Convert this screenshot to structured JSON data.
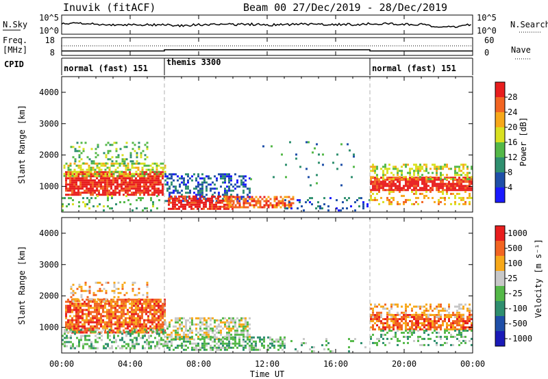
{
  "header": {
    "radar_title": "Inuvik (fitACF)",
    "beam_title": "Beam 00  27/Dec/2019 - 28/Dec/2019"
  },
  "colors": {
    "data_line": "#000000",
    "gap_line": "#b0b0b0"
  },
  "top_panels": {
    "nsky_label": "N.Sky",
    "nsearch_label": "N.Search",
    "nsky_ticks": [
      "10^5",
      "10^0"
    ],
    "nsearch_ticks": [
      "10^5",
      "10^0"
    ],
    "freq_label_1": "Freq.",
    "freq_label_2": "[MHz]",
    "freq_ticks": [
      "18",
      "8"
    ],
    "nave_label": "Nave",
    "nave_ticks": [
      "60",
      "0"
    ],
    "cpid_label": "CPID",
    "cpid_segments": [
      {
        "label": "normal (fast) 151",
        "start": 0,
        "end": 6
      },
      {
        "label": "themis 3300",
        "start": 6,
        "end": 18
      },
      {
        "label": "normal (fast) 151",
        "start": 18,
        "end": 24
      }
    ]
  },
  "x_axis": {
    "label": "Time UT",
    "ticks": [
      "00:00",
      "04:00",
      "08:00",
      "12:00",
      "16:00",
      "20:00",
      "00:00"
    ]
  },
  "chart_data": [
    {
      "type": "heatmap",
      "panel": "power",
      "ylabel": "Slant Range [km]",
      "yticks": [
        "1000",
        "2000",
        "3000",
        "4000"
      ],
      "xlim": [
        0,
        24
      ],
      "ylim": [
        180,
        4500
      ],
      "colorbar": {
        "label": "Power [dB]",
        "labels": [
          "4",
          "8",
          "12",
          "16",
          "20",
          "24",
          "28"
        ],
        "colors": [
          "#1a1aff",
          "#1f4fa8",
          "#2f8f6f",
          "#54b848",
          "#d9e021",
          "#f7a81a",
          "#f26522",
          "#e81e1e"
        ]
      },
      "regions": [
        {
          "t0": 0.2,
          "t1": 5.9,
          "r0": 700,
          "r1": 1450,
          "level": 7,
          "density": 0.85
        },
        {
          "t0": 0.1,
          "t1": 6.0,
          "r0": 1300,
          "r1": 1700,
          "level": 4,
          "density": 0.6
        },
        {
          "t0": 0.5,
          "t1": 5.0,
          "r0": 1700,
          "r1": 2400,
          "level": 3,
          "density": 0.25
        },
        {
          "t0": 0.0,
          "t1": 6.0,
          "r0": 200,
          "r1": 700,
          "level": 3,
          "density": 0.2
        },
        {
          "t0": 6.0,
          "t1": 11.0,
          "r0": 500,
          "r1": 1400,
          "level": 1,
          "density": 0.45
        },
        {
          "t0": 6.2,
          "t1": 10.0,
          "r0": 250,
          "r1": 700,
          "level": 7,
          "density": 0.75
        },
        {
          "t0": 9.5,
          "t1": 13.5,
          "r0": 300,
          "r1": 650,
          "level": 6,
          "density": 0.6
        },
        {
          "t0": 13.0,
          "t1": 18.0,
          "r0": 200,
          "r1": 600,
          "level": 1,
          "density": 0.15
        },
        {
          "t0": 18.0,
          "t1": 24.0,
          "r0": 850,
          "r1": 1300,
          "level": 7,
          "density": 0.85
        },
        {
          "t0": 18.0,
          "t1": 24.0,
          "r0": 1200,
          "r1": 1700,
          "level": 4,
          "density": 0.45
        },
        {
          "t0": 18.0,
          "t1": 24.0,
          "r0": 400,
          "r1": 850,
          "level": 5,
          "density": 0.3
        },
        {
          "t0": 11.0,
          "t1": 17.0,
          "r0": 1000,
          "r1": 2500,
          "level": 2,
          "density": 0.03
        }
      ]
    },
    {
      "type": "heatmap",
      "panel": "velocity",
      "ylabel": "Slant Range [km]",
      "yticks": [
        "1000",
        "2000",
        "3000",
        "4000"
      ],
      "xlim": [
        0,
        24
      ],
      "ylim": [
        180,
        4500
      ],
      "colorbar": {
        "label": "Velocity [m s⁻¹]",
        "labels": [
          "1000",
          "500",
          "100",
          "25",
          "-25",
          "-100",
          "-500",
          "-1000"
        ],
        "colors": [
          "#1a1ab8",
          "#1f4fa8",
          "#2f8f6f",
          "#54b848",
          "#c8c8c8",
          "#f7a81a",
          "#f26522",
          "#e81e1e"
        ]
      },
      "regions": [
        {
          "t0": 0.2,
          "t1": 6.0,
          "r0": 800,
          "r1": 1900,
          "level": 6,
          "density": 0.8
        },
        {
          "t0": 0.5,
          "t1": 5.0,
          "r0": 1800,
          "r1": 2400,
          "level": 5,
          "density": 0.3
        },
        {
          "t0": 0.0,
          "t1": 6.0,
          "r0": 300,
          "r1": 900,
          "level": 3,
          "density": 0.4
        },
        {
          "t0": 6.0,
          "t1": 11.0,
          "r0": 600,
          "r1": 1300,
          "level": 4,
          "density": 0.55
        },
        {
          "t0": 6.0,
          "t1": 13.0,
          "r0": 250,
          "r1": 650,
          "level": 3,
          "density": 0.5
        },
        {
          "t0": 18.0,
          "t1": 24.0,
          "r0": 900,
          "r1": 1400,
          "level": 6,
          "density": 0.75
        },
        {
          "t0": 18.0,
          "t1": 24.0,
          "r0": 1300,
          "r1": 1700,
          "level": 5,
          "density": 0.4
        },
        {
          "t0": 18.0,
          "t1": 24.0,
          "r0": 400,
          "r1": 900,
          "level": 3,
          "density": 0.3
        },
        {
          "t0": 13.0,
          "t1": 18.0,
          "r0": 200,
          "r1": 600,
          "level": 3,
          "density": 0.1
        }
      ]
    },
    {
      "type": "line",
      "panel": "nsky_nsearch",
      "series": [
        {
          "x": [
            0,
            1,
            2,
            3,
            4,
            5,
            6,
            7,
            8,
            9,
            10,
            11,
            12,
            13,
            14,
            15,
            16,
            17,
            18,
            19,
            20,
            21,
            22,
            23,
            24
          ],
          "y": [
            0.55,
            0.55,
            0.52,
            0.5,
            0.48,
            0.5,
            0.48,
            0.45,
            0.5,
            0.52,
            0.5,
            0.52,
            0.48,
            0.5,
            0.52,
            0.5,
            0.52,
            0.5,
            0.55,
            0.55,
            0.52,
            0.5,
            0.35,
            0.4,
            0.5
          ]
        }
      ]
    },
    {
      "type": "line",
      "panel": "freq_nave",
      "series": [
        {
          "x": [
            0,
            6,
            6,
            18,
            18,
            24
          ],
          "y": [
            10.5,
            10.5,
            11.2,
            11.2,
            10.5,
            10.5
          ]
        }
      ]
    }
  ]
}
